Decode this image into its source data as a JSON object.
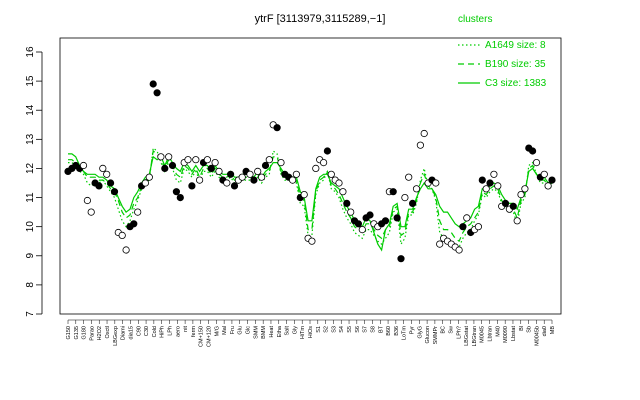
{
  "chart_data": {
    "type": "line",
    "title": "ytrF [3113979,3115289,−1]",
    "xlabel": "",
    "ylabel": "",
    "ylim": [
      7,
      16
    ],
    "yticks": [
      7,
      8,
      9,
      10,
      11,
      12,
      13,
      14,
      15,
      16
    ],
    "grid": false,
    "legend": {
      "title": "clusters",
      "placement": "top-right",
      "entries": [
        {
          "label": "A1649 size: 8",
          "style": "dotted"
        },
        {
          "label": "B190 size: 35",
          "style": "dashed"
        },
        {
          "label": "C3 size: 1383",
          "style": "solid"
        }
      ]
    },
    "colors": {
      "series": "#00cc00",
      "points": "#000000",
      "hollow_fill": "#ffffff"
    },
    "x_tick_labels": [
      "G150",
      "G135",
      "G180",
      "Parao",
      "H2O2",
      "Oxctl",
      "LBGexp",
      "Diami",
      "dia15",
      "C90",
      "C30",
      "Cold",
      "HiPh",
      "LPh",
      "aero",
      "nit",
      "ferm",
      "CM+150",
      "CM+120",
      "M/G",
      "Mal",
      "Fru",
      "Glu",
      "Glc",
      "SMM",
      "BMM",
      "Heat",
      "Etha",
      "Salt",
      "Gly",
      "HiTm",
      "HiOs",
      "S1",
      "S2",
      "S3",
      "S4",
      "S5",
      "S6",
      "S7",
      "S8",
      "BT",
      "B60",
      "B36",
      "LoTm",
      "Pyr",
      "GlyG",
      "Glucon",
      "SMMPr",
      "BC",
      "Sw",
      "LPh?",
      "LBGstat",
      "LBGtran",
      "M0045",
      "Lbtran",
      "M40",
      "M0090",
      "Lbstat",
      "Bl",
      "Sb",
      "M0045b",
      "dia0",
      "MB"
    ],
    "points": [
      {
        "x": 1,
        "y": 11.9,
        "filled": true
      },
      {
        "x": 2,
        "y": 12.0,
        "filled": true
      },
      {
        "x": 3,
        "y": 12.1,
        "filled": true
      },
      {
        "x": 4,
        "y": 12.0,
        "filled": true
      },
      {
        "x": 5,
        "y": 12.1,
        "filled": false
      },
      {
        "x": 6,
        "y": 10.9,
        "filled": false
      },
      {
        "x": 7,
        "y": 10.5,
        "filled": false
      },
      {
        "x": 8,
        "y": 11.5,
        "filled": true
      },
      {
        "x": 9,
        "y": 11.4,
        "filled": true
      },
      {
        "x": 10,
        "y": 12.0,
        "filled": false
      },
      {
        "x": 11,
        "y": 11.8,
        "filled": false
      },
      {
        "x": 12,
        "y": 11.5,
        "filled": true
      },
      {
        "x": 13,
        "y": 11.2,
        "filled": true
      },
      {
        "x": 14,
        "y": 9.8,
        "filled": false
      },
      {
        "x": 15,
        "y": 9.7,
        "filled": false
      },
      {
        "x": 16,
        "y": 9.2,
        "filled": false
      },
      {
        "x": 17,
        "y": 10.0,
        "filled": true
      },
      {
        "x": 18,
        "y": 10.1,
        "filled": true
      },
      {
        "x": 19,
        "y": 10.5,
        "filled": false
      },
      {
        "x": 20,
        "y": 11.4,
        "filled": true
      },
      {
        "x": 21,
        "y": 11.5,
        "filled": false
      },
      {
        "x": 22,
        "y": 11.7,
        "filled": false
      },
      {
        "x": 23,
        "y": 14.9,
        "filled": true
      },
      {
        "x": 24,
        "y": 14.6,
        "filled": true
      },
      {
        "x": 25,
        "y": 12.4,
        "filled": false
      },
      {
        "x": 26,
        "y": 12.0,
        "filled": true
      },
      {
        "x": 27,
        "y": 12.4,
        "filled": false
      },
      {
        "x": 28,
        "y": 12.1,
        "filled": true
      },
      {
        "x": 29,
        "y": 11.2,
        "filled": true
      },
      {
        "x": 30,
        "y": 11.0,
        "filled": true
      },
      {
        "x": 31,
        "y": 12.2,
        "filled": false
      },
      {
        "x": 32,
        "y": 12.3,
        "filled": false
      },
      {
        "x": 33,
        "y": 11.4,
        "filled": true
      },
      {
        "x": 34,
        "y": 12.3,
        "filled": false
      },
      {
        "x": 35,
        "y": 11.6,
        "filled": false
      },
      {
        "x": 36,
        "y": 12.2,
        "filled": true
      },
      {
        "x": 37,
        "y": 12.3,
        "filled": false
      },
      {
        "x": 38,
        "y": 12.0,
        "filled": true
      },
      {
        "x": 39,
        "y": 12.2,
        "filled": false
      },
      {
        "x": 40,
        "y": 11.9,
        "filled": false
      },
      {
        "x": 41,
        "y": 11.6,
        "filled": true
      },
      {
        "x": 42,
        "y": 11.5,
        "filled": false
      },
      {
        "x": 43,
        "y": 11.8,
        "filled": true
      },
      {
        "x": 44,
        "y": 11.4,
        "filled": true
      },
      {
        "x": 45,
        "y": 11.6,
        "filled": false
      },
      {
        "x": 46,
        "y": 11.7,
        "filled": false
      },
      {
        "x": 47,
        "y": 11.9,
        "filled": true
      },
      {
        "x": 48,
        "y": 11.8,
        "filled": false
      },
      {
        "x": 49,
        "y": 11.6,
        "filled": true
      },
      {
        "x": 50,
        "y": 11.9,
        "filled": false
      },
      {
        "x": 51,
        "y": 11.7,
        "filled": false
      },
      {
        "x": 52,
        "y": 12.1,
        "filled": true
      },
      {
        "x": 53,
        "y": 12.3,
        "filled": false
      },
      {
        "x": 54,
        "y": 13.5,
        "filled": false
      },
      {
        "x": 55,
        "y": 13.4,
        "filled": true
      },
      {
        "x": 56,
        "y": 12.2,
        "filled": false
      },
      {
        "x": 57,
        "y": 11.8,
        "filled": true
      },
      {
        "x": 58,
        "y": 11.7,
        "filled": true
      },
      {
        "x": 59,
        "y": 11.6,
        "filled": false
      },
      {
        "x": 60,
        "y": 11.8,
        "filled": false
      },
      {
        "x": 61,
        "y": 11.0,
        "filled": true
      },
      {
        "x": 62,
        "y": 11.1,
        "filled": false
      },
      {
        "x": 63,
        "y": 9.6,
        "filled": false
      },
      {
        "x": 64,
        "y": 9.5,
        "filled": false
      },
      {
        "x": 65,
        "y": 12.0,
        "filled": false
      },
      {
        "x": 66,
        "y": 12.3,
        "filled": false
      },
      {
        "x": 67,
        "y": 12.2,
        "filled": false
      },
      {
        "x": 68,
        "y": 12.6,
        "filled": true
      },
      {
        "x": 69,
        "y": 11.8,
        "filled": false
      },
      {
        "x": 70,
        "y": 11.6,
        "filled": false
      },
      {
        "x": 71,
        "y": 11.5,
        "filled": false
      },
      {
        "x": 72,
        "y": 11.2,
        "filled": false
      },
      {
        "x": 73,
        "y": 10.8,
        "filled": true
      },
      {
        "x": 74,
        "y": 10.5,
        "filled": false
      },
      {
        "x": 75,
        "y": 10.2,
        "filled": true
      },
      {
        "x": 76,
        "y": 10.1,
        "filled": true
      },
      {
        "x": 77,
        "y": 9.9,
        "filled": false
      },
      {
        "x": 78,
        "y": 10.3,
        "filled": true
      },
      {
        "x": 79,
        "y": 10.4,
        "filled": true
      },
      {
        "x": 80,
        "y": 10.1,
        "filled": false
      },
      {
        "x": 81,
        "y": 10.0,
        "filled": false
      },
      {
        "x": 82,
        "y": 10.1,
        "filled": true
      },
      {
        "x": 83,
        "y": 10.2,
        "filled": true
      },
      {
        "x": 84,
        "y": 11.2,
        "filled": false
      },
      {
        "x": 85,
        "y": 11.2,
        "filled": true
      },
      {
        "x": 86,
        "y": 10.3,
        "filled": true
      },
      {
        "x": 87,
        "y": 8.9,
        "filled": true
      },
      {
        "x": 88,
        "y": 11.0,
        "filled": false
      },
      {
        "x": 89,
        "y": 11.7,
        "filled": false
      },
      {
        "x": 90,
        "y": 10.8,
        "filled": true
      },
      {
        "x": 91,
        "y": 11.3,
        "filled": false
      },
      {
        "x": 92,
        "y": 12.8,
        "filled": false
      },
      {
        "x": 93,
        "y": 13.2,
        "filled": false
      },
      {
        "x": 94,
        "y": 11.5,
        "filled": false
      },
      {
        "x": 95,
        "y": 11.6,
        "filled": true
      },
      {
        "x": 96,
        "y": 11.5,
        "filled": false
      },
      {
        "x": 97,
        "y": 9.4,
        "filled": false
      },
      {
        "x": 98,
        "y": 9.6,
        "filled": false
      },
      {
        "x": 99,
        "y": 9.5,
        "filled": false
      },
      {
        "x": 100,
        "y": 9.4,
        "filled": false
      },
      {
        "x": 101,
        "y": 9.3,
        "filled": false
      },
      {
        "x": 102,
        "y": 9.2,
        "filled": false
      },
      {
        "x": 103,
        "y": 10.0,
        "filled": true
      },
      {
        "x": 104,
        "y": 10.3,
        "filled": false
      },
      {
        "x": 105,
        "y": 9.8,
        "filled": true
      },
      {
        "x": 106,
        "y": 9.9,
        "filled": false
      },
      {
        "x": 107,
        "y": 10.0,
        "filled": false
      },
      {
        "x": 108,
        "y": 11.6,
        "filled": true
      },
      {
        "x": 109,
        "y": 11.3,
        "filled": false
      },
      {
        "x": 110,
        "y": 11.5,
        "filled": true
      },
      {
        "x": 111,
        "y": 11.8,
        "filled": false
      },
      {
        "x": 112,
        "y": 11.4,
        "filled": false
      },
      {
        "x": 113,
        "y": 10.7,
        "filled": false
      },
      {
        "x": 114,
        "y": 10.8,
        "filled": true
      },
      {
        "x": 115,
        "y": 10.6,
        "filled": false
      },
      {
        "x": 116,
        "y": 10.7,
        "filled": true
      },
      {
        "x": 117,
        "y": 10.2,
        "filled": false
      },
      {
        "x": 118,
        "y": 11.1,
        "filled": false
      },
      {
        "x": 119,
        "y": 11.3,
        "filled": false
      },
      {
        "x": 120,
        "y": 12.7,
        "filled": true
      },
      {
        "x": 121,
        "y": 12.6,
        "filled": true
      },
      {
        "x": 122,
        "y": 12.2,
        "filled": false
      },
      {
        "x": 123,
        "y": 11.7,
        "filled": true
      },
      {
        "x": 124,
        "y": 11.8,
        "filled": false
      },
      {
        "x": 125,
        "y": 11.4,
        "filled": false
      },
      {
        "x": 126,
        "y": 11.6,
        "filled": true
      }
    ],
    "series": [
      {
        "name": "C3 size: 1383",
        "style": "solid",
        "values": [
          12.5,
          12.5,
          12.4,
          12.1,
          11.9,
          11.8,
          11.8,
          11.8,
          11.7,
          11.7,
          11.6,
          11.4,
          11.3,
          11.0,
          10.7,
          10.5,
          10.6,
          11.0,
          11.2,
          11.5,
          11.7,
          11.8,
          12.4,
          12.3,
          12.4,
          12.1,
          12.4,
          12.2,
          12.0,
          11.9,
          12.2,
          12.1,
          11.9,
          12.1,
          11.9,
          12.1,
          12.1,
          11.9,
          12.1,
          11.9,
          11.8,
          11.8,
          11.9,
          11.7,
          11.7,
          11.8,
          11.8,
          11.8,
          11.7,
          11.9,
          11.7,
          11.9,
          12.0,
          12.2,
          12.2,
          12.0,
          11.8,
          11.8,
          11.7,
          11.7,
          11.2,
          11.0,
          10.2,
          10.2,
          11.3,
          11.7,
          11.8,
          11.8,
          11.5,
          11.4,
          11.3,
          11.0,
          10.7,
          10.5,
          10.2,
          10.1,
          10.0,
          10.3,
          10.2,
          9.8,
          9.4,
          9.2,
          9.9,
          10.1,
          10.7,
          10.8,
          10.0,
          10.0,
          10.6,
          10.6,
          11.0,
          11.3,
          11.5,
          11.3,
          11.3,
          11.1,
          10.7,
          10.5,
          10.5,
          10.3,
          10.1,
          10.0,
          10.1,
          10.2,
          10.3,
          10.6,
          10.7,
          11.3,
          11.2,
          11.4,
          11.5,
          11.4,
          11.1,
          10.9,
          10.8,
          10.8,
          10.6,
          11.0,
          11.2,
          11.9,
          12.0,
          11.8,
          11.7,
          11.7,
          11.5,
          11.6
        ]
      },
      {
        "name": "B190 size: 35",
        "style": "dashed",
        "values": [
          12.3,
          12.3,
          12.2,
          12.0,
          11.9,
          11.7,
          11.7,
          11.7,
          11.6,
          11.6,
          11.5,
          11.3,
          11.2,
          10.9,
          10.5,
          10.3,
          10.4,
          10.8,
          11.0,
          11.4,
          11.6,
          11.7,
          12.6,
          12.5,
          12.3,
          12.0,
          12.3,
          12.1,
          11.8,
          11.7,
          12.1,
          12.0,
          11.8,
          12.0,
          11.7,
          12.0,
          12.0,
          11.8,
          12.0,
          11.8,
          11.7,
          11.7,
          11.8,
          11.6,
          11.6,
          11.7,
          11.7,
          11.7,
          11.6,
          11.8,
          11.6,
          11.8,
          11.9,
          12.4,
          12.4,
          11.9,
          11.7,
          11.7,
          11.6,
          11.6,
          11.0,
          10.9,
          9.9,
          9.9,
          11.2,
          11.6,
          11.7,
          11.9,
          11.4,
          11.3,
          11.1,
          10.8,
          10.5,
          10.3,
          10.0,
          9.9,
          9.8,
          10.1,
          10.1,
          9.9,
          9.7,
          9.6,
          9.9,
          10.0,
          10.6,
          10.7,
          9.7,
          9.8,
          10.5,
          10.5,
          10.9,
          11.5,
          11.8,
          11.4,
          11.3,
          11.0,
          10.2,
          9.9,
          9.9,
          9.8,
          9.6,
          9.5,
          9.8,
          10.0,
          10.1,
          10.3,
          10.5,
          11.2,
          11.1,
          11.3,
          11.4,
          11.3,
          10.9,
          10.7,
          10.6,
          10.6,
          10.3,
          10.9,
          11.1,
          12.0,
          12.1,
          11.8,
          11.6,
          11.6,
          11.4,
          11.5
        ]
      },
      {
        "name": "A1649 size: 8",
        "style": "dotted",
        "values": [
          12.2,
          12.2,
          12.1,
          11.9,
          11.8,
          11.5,
          11.4,
          11.5,
          11.5,
          11.6,
          11.4,
          11.2,
          11.0,
          10.6,
          10.2,
          10.0,
          10.2,
          10.6,
          10.9,
          11.3,
          11.5,
          11.6,
          12.7,
          12.6,
          12.2,
          11.9,
          12.2,
          12.0,
          11.6,
          11.5,
          12.0,
          11.9,
          11.7,
          11.9,
          11.6,
          11.9,
          11.9,
          11.7,
          11.9,
          11.7,
          11.6,
          11.6,
          11.7,
          11.5,
          11.5,
          11.6,
          11.6,
          11.6,
          11.5,
          11.7,
          11.5,
          11.7,
          11.8,
          12.6,
          12.5,
          11.8,
          11.6,
          11.6,
          11.5,
          11.5,
          10.8,
          10.7,
          9.7,
          9.7,
          11.1,
          11.5,
          11.6,
          11.9,
          11.3,
          11.2,
          11.0,
          10.6,
          10.3,
          10.1,
          9.8,
          9.7,
          9.6,
          9.9,
          9.9,
          9.7,
          9.5,
          9.4,
          9.6,
          9.8,
          10.5,
          10.6,
          9.4,
          9.6,
          10.4,
          10.4,
          10.8,
          11.6,
          12.0,
          11.4,
          11.3,
          10.9,
          9.8,
          9.6,
          9.6,
          9.5,
          9.4,
          9.3,
          9.6,
          9.8,
          9.9,
          10.2,
          10.4,
          11.1,
          11.0,
          11.2,
          11.3,
          11.2,
          10.8,
          10.6,
          10.5,
          10.5,
          10.1,
          10.8,
          11.0,
          12.1,
          12.2,
          11.8,
          11.5,
          11.5,
          11.3,
          11.4
        ]
      }
    ]
  }
}
